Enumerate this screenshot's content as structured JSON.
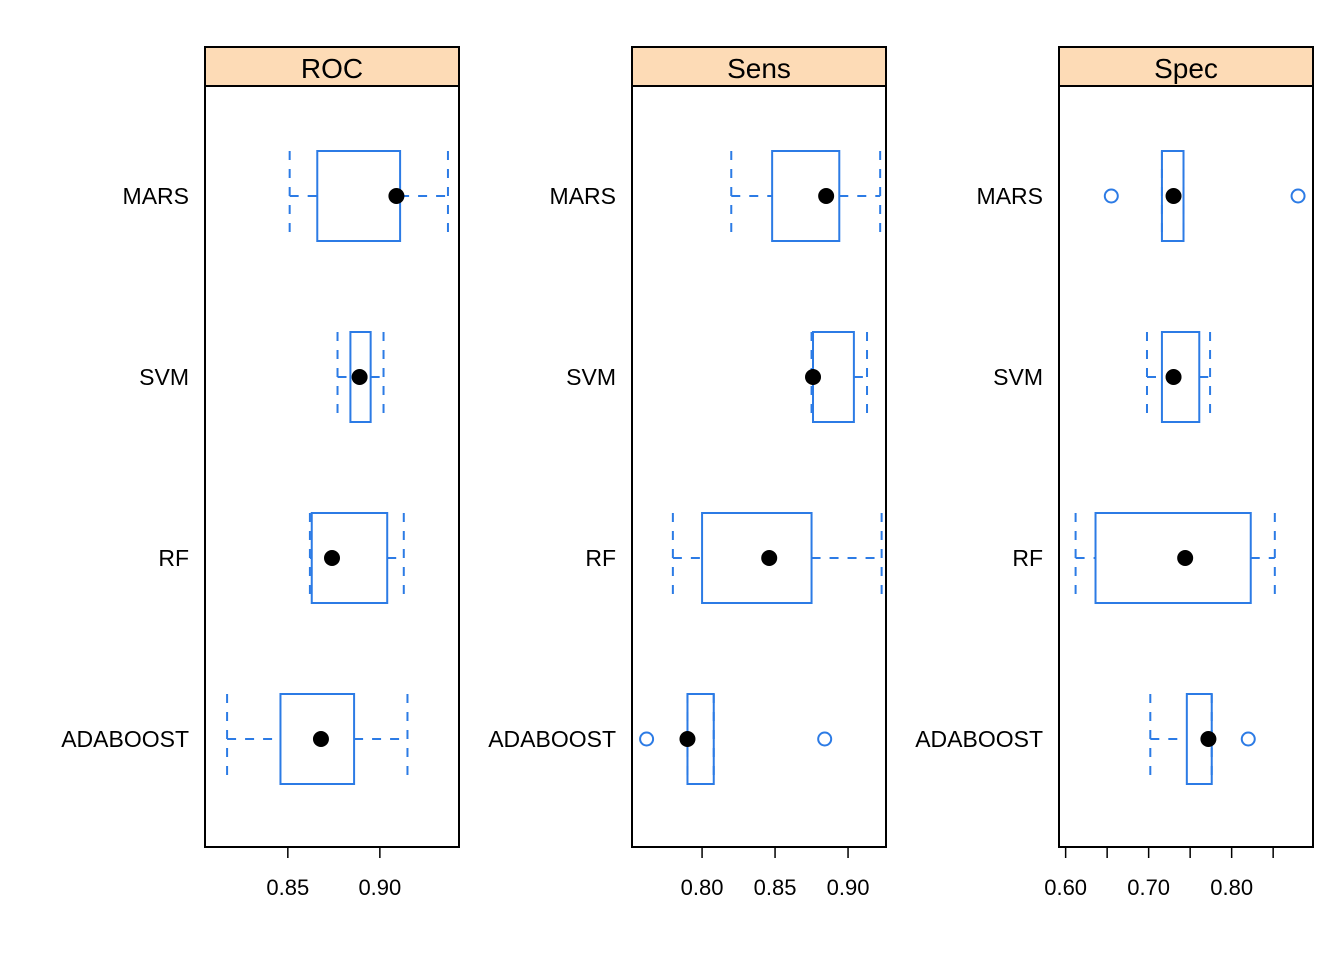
{
  "chart_data": {
    "type": "boxplot",
    "categories": [
      "MARS",
      "SVM",
      "RF",
      "ADABOOST"
    ],
    "colors": {
      "box": "#2C7BE5",
      "median_dot": "#000000",
      "strip": "#FDDBB6",
      "frame": "#000000"
    },
    "panels": [
      {
        "title": "ROC",
        "xlim": [
          0.805,
          0.943
        ],
        "ticks": [
          0.85,
          0.9
        ],
        "tick_labels": [
          "0.85",
          "0.90"
        ],
        "boxes": [
          {
            "category": "MARS",
            "whisker_low": 0.851,
            "q1": 0.866,
            "median": 0.909,
            "q3": 0.911,
            "whisker_high": 0.937,
            "outliers": []
          },
          {
            "category": "SVM",
            "whisker_low": 0.877,
            "q1": 0.884,
            "median": 0.889,
            "q3": 0.895,
            "whisker_high": 0.902,
            "outliers": []
          },
          {
            "category": "RF",
            "whisker_low": 0.862,
            "q1": 0.863,
            "median": 0.874,
            "q3": 0.904,
            "whisker_high": 0.913,
            "outliers": []
          },
          {
            "category": "ADABOOST",
            "whisker_low": 0.817,
            "q1": 0.846,
            "median": 0.868,
            "q3": 0.886,
            "whisker_high": 0.915,
            "outliers": []
          }
        ]
      },
      {
        "title": "Sens",
        "xlim": [
          0.752,
          0.926
        ],
        "ticks": [
          0.8,
          0.85,
          0.9
        ],
        "tick_labels": [
          "0.80",
          "0.85",
          "0.90"
        ],
        "boxes": [
          {
            "category": "MARS",
            "whisker_low": 0.82,
            "q1": 0.848,
            "median": 0.885,
            "q3": 0.894,
            "whisker_high": 0.922,
            "outliers": []
          },
          {
            "category": "SVM",
            "whisker_low": 0.875,
            "q1": 0.876,
            "median": 0.876,
            "q3": 0.904,
            "whisker_high": 0.913,
            "outliers": []
          },
          {
            "category": "RF",
            "whisker_low": 0.78,
            "q1": 0.8,
            "median": 0.846,
            "q3": 0.875,
            "whisker_high": 0.923,
            "outliers": []
          },
          {
            "category": "ADABOOST",
            "whisker_low": 0.79,
            "q1": 0.79,
            "median": 0.79,
            "q3": 0.808,
            "whisker_high": 0.808,
            "outliers": [
              0.762,
              0.884
            ]
          }
        ]
      },
      {
        "title": "Spec",
        "xlim": [
          0.592,
          0.898
        ],
        "ticks": [
          0.6,
          0.65,
          0.7,
          0.75,
          0.8,
          0.85
        ],
        "tick_labels": [
          "0.60",
          "",
          "0.70",
          "",
          "0.80",
          ""
        ],
        "boxes": [
          {
            "category": "MARS",
            "whisker_low": 0.716,
            "q1": 0.716,
            "median": 0.73,
            "q3": 0.742,
            "whisker_high": 0.742,
            "outliers": [
              0.655,
              0.88
            ]
          },
          {
            "category": "SVM",
            "whisker_low": 0.698,
            "q1": 0.716,
            "median": 0.73,
            "q3": 0.761,
            "whisker_high": 0.774,
            "outliers": []
          },
          {
            "category": "RF",
            "whisker_low": 0.612,
            "q1": 0.636,
            "median": 0.744,
            "q3": 0.823,
            "whisker_high": 0.852,
            "outliers": []
          },
          {
            "category": "ADABOOST",
            "whisker_low": 0.702,
            "q1": 0.746,
            "median": 0.772,
            "q3": 0.776,
            "whisker_high": 0.776,
            "outliers": [
              0.82
            ]
          }
        ]
      }
    ]
  }
}
